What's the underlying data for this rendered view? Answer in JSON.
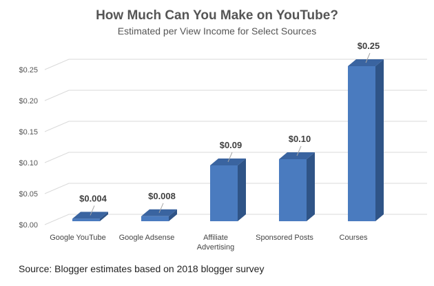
{
  "header": {
    "title": "How Much Can You Make on YouTube?",
    "subtitle": "Estimated per View Income for Select Sources"
  },
  "footer": {
    "source": "Source: Blogger estimates based on 2018 blogger survey"
  },
  "colors": {
    "bar_front": "#4a7bbf",
    "bar_side": "#2f5487",
    "bar_top": "#3a64a0",
    "grid": "#d9d9d9",
    "text": "#555555"
  },
  "chart_data": {
    "type": "bar",
    "title": "How Much Can You Make on YouTube?",
    "subtitle": "Estimated per View Income for Select Sources",
    "categories": [
      "Google YouTube",
      "Google Adsense",
      "Affiliate Advertising",
      "Sponsored Posts",
      "Courses"
    ],
    "values": [
      0.004,
      0.008,
      0.09,
      0.1,
      0.25
    ],
    "data_labels": [
      "$0.004",
      "$0.008",
      "$0.09",
      "$0.10",
      "$0.25"
    ],
    "xlabel": "",
    "ylabel": "",
    "ylim": [
      0,
      0.25
    ],
    "yticks": [
      "$0.00",
      "$0.05",
      "$0.10",
      "$0.15",
      "$0.20",
      "$0.25"
    ],
    "grid": true,
    "legend": null,
    "style": "3D column",
    "source": "Source: Blogger estimates based on 2018 blogger survey"
  }
}
